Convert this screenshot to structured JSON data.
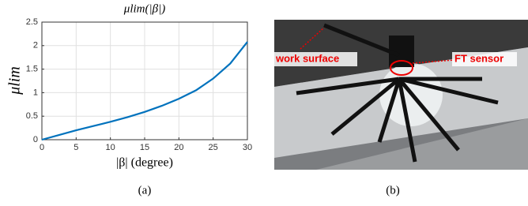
{
  "chart_data": {
    "type": "line",
    "title": "μlim(|β|)",
    "ylabel": "μlim",
    "xlabel": "|β| (degree)",
    "x": [
      0,
      2.5,
      5,
      7.5,
      10,
      12.5,
      15,
      17.5,
      20,
      22.5,
      25,
      27.5,
      30
    ],
    "series": [
      {
        "name": "μlim",
        "color": "#0072bd",
        "values": [
          0,
          0.1,
          0.2,
          0.29,
          0.38,
          0.48,
          0.59,
          0.72,
          0.87,
          1.05,
          1.3,
          1.62,
          2.08
        ]
      }
    ],
    "xlim": [
      0,
      30
    ],
    "xticks": [
      0,
      5,
      10,
      15,
      20,
      25,
      30
    ],
    "ylim": [
      0,
      2.5
    ],
    "yticks": [
      0,
      0.5,
      1,
      1.5,
      2,
      2.5
    ],
    "grid": true
  },
  "photo": {
    "labels": [
      "work surface",
      "FT sensor"
    ]
  },
  "captions": [
    "(a)",
    "(b)"
  ]
}
